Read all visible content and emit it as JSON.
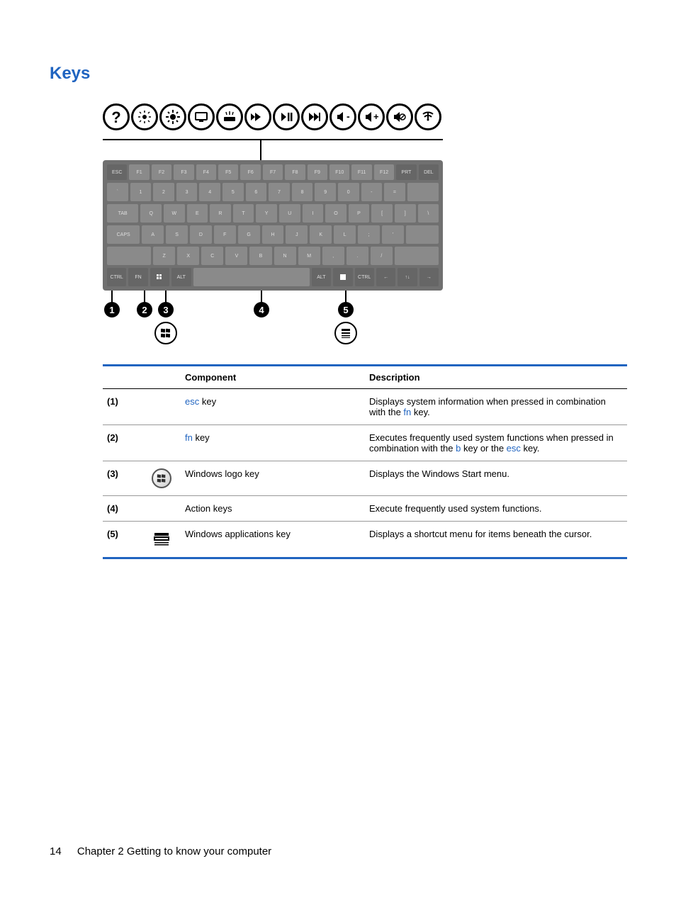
{
  "section_title": "Keys",
  "colors": {
    "heading": "#2064c0",
    "rule": "#2064c0",
    "link": "#2064c0",
    "text": "#000000",
    "keyboard_bg": "#707070",
    "key_bg": "#8a8a8a",
    "key_dark": "#666666"
  },
  "action_icons": [
    "help",
    "brightness-down",
    "brightness-up",
    "switch-display",
    "keyboard-light",
    "prev-track",
    "play-pause",
    "next-track",
    "volume-down",
    "volume-up",
    "mute",
    "wireless"
  ],
  "keyboard": {
    "row1": [
      "esc",
      "f1",
      "f2",
      "f3",
      "f4",
      "f5",
      "f6",
      "f7",
      "f8",
      "f9",
      "f10",
      "f11",
      "f12",
      "prt",
      "del"
    ],
    "row2": [
      "`",
      "1",
      "2",
      "3",
      "4",
      "5",
      "6",
      "7",
      "8",
      "9",
      "0",
      "-",
      "=",
      "backspace"
    ],
    "row3": [
      "tab",
      "Q",
      "W",
      "E",
      "R",
      "T",
      "Y",
      "U",
      "I",
      "O",
      "P",
      "[",
      "]",
      "\\"
    ],
    "row4": [
      "caps",
      "A",
      "S",
      "D",
      "F",
      "G",
      "H",
      "J",
      "K",
      "L",
      ";",
      "'",
      "enter"
    ],
    "row5": [
      "shift",
      "Z",
      "X",
      "C",
      "V",
      "B",
      "N",
      "M",
      ",",
      ".",
      "/",
      "shift"
    ],
    "row6": [
      "ctrl",
      "fn",
      "win",
      "alt",
      "space",
      "alt",
      "app",
      "ctrl",
      "←",
      "↑↓",
      "→"
    ]
  },
  "callouts": [
    "1",
    "2",
    "3",
    "4",
    "5"
  ],
  "table": {
    "headers": {
      "component": "Component",
      "description": "Description"
    },
    "rows": [
      {
        "num": "(1)",
        "icon": null,
        "comp_pre": "esc",
        "comp_post": " key",
        "desc_parts": [
          {
            "t": "Displays system information when pressed in combination with the "
          },
          {
            "t": "fn",
            "blue": true
          },
          {
            "t": " key."
          }
        ]
      },
      {
        "num": "(2)",
        "icon": null,
        "comp_pre": "fn",
        "comp_post": " key",
        "desc_parts": [
          {
            "t": "Executes frequently used system functions when pressed in combination with the "
          },
          {
            "t": "b",
            "blue": true
          },
          {
            "t": " key or the "
          },
          {
            "t": "esc",
            "blue": true
          },
          {
            "t": " key."
          }
        ]
      },
      {
        "num": "(3)",
        "icon": "windows-logo",
        "comp_plain": "Windows logo key",
        "desc_parts": [
          {
            "t": "Displays the Windows Start menu."
          }
        ]
      },
      {
        "num": "(4)",
        "icon": null,
        "comp_plain": "Action keys",
        "desc_parts": [
          {
            "t": "Execute frequently used system functions."
          }
        ]
      },
      {
        "num": "(5)",
        "icon": "apps-key",
        "comp_plain": "Windows applications key",
        "desc_parts": [
          {
            "t": "Displays a shortcut menu for items beneath the cursor."
          }
        ]
      }
    ]
  },
  "footer": {
    "page": "14",
    "chapter": "Chapter 2   Getting to know your computer"
  }
}
